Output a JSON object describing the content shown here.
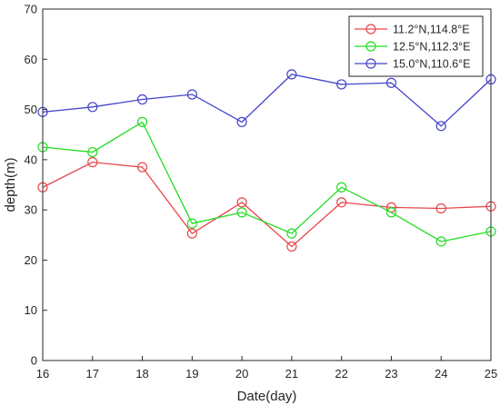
{
  "chart_data": {
    "type": "line",
    "xlabel": "Date(day)",
    "ylabel": "depth(m)",
    "xlim": [
      16,
      25
    ],
    "ylim": [
      0,
      70
    ],
    "x": [
      16,
      17,
      18,
      19,
      20,
      21,
      22,
      23,
      24,
      25
    ],
    "x_ticks": [
      "16",
      "17",
      "18",
      "19",
      "20",
      "21",
      "22",
      "23",
      "24",
      "25"
    ],
    "y_ticks": [
      "0",
      "10",
      "20",
      "30",
      "40",
      "50",
      "60",
      "70"
    ],
    "grid": false,
    "legend_position": "top-right",
    "series": [
      {
        "name": "11.2°N,114.8°E",
        "color": "#e8474a",
        "marker": "open-circle",
        "values": [
          34.5,
          39.5,
          38.5,
          25.3,
          31.5,
          22.7,
          31.5,
          30.5,
          30.3,
          30.7
        ]
      },
      {
        "name": "12.5°N,112.3°E",
        "color": "#22dd22",
        "marker": "open-circle",
        "values": [
          42.5,
          41.5,
          47.5,
          27.3,
          29.5,
          25.3,
          34.5,
          29.5,
          23.7,
          25.7
        ]
      },
      {
        "name": "15.0°N,110.6°E",
        "color": "#4444cc",
        "marker": "open-circle",
        "values": [
          49.5,
          50.5,
          52.0,
          53.0,
          47.5,
          57.0,
          55.0,
          55.3,
          46.7,
          56.0
        ]
      }
    ]
  }
}
